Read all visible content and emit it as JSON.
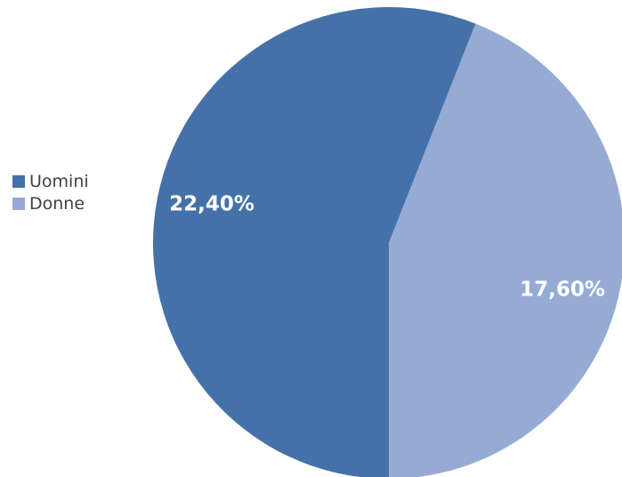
{
  "chart_data": {
    "type": "pie",
    "categories": [
      "Uomini",
      "Donne"
    ],
    "values": [
      22.4,
      17.6
    ],
    "data_labels": [
      "22,40%",
      "17,60%"
    ],
    "colors": [
      "#4472A8",
      "#95ABD3"
    ],
    "legend_position": "left"
  }
}
